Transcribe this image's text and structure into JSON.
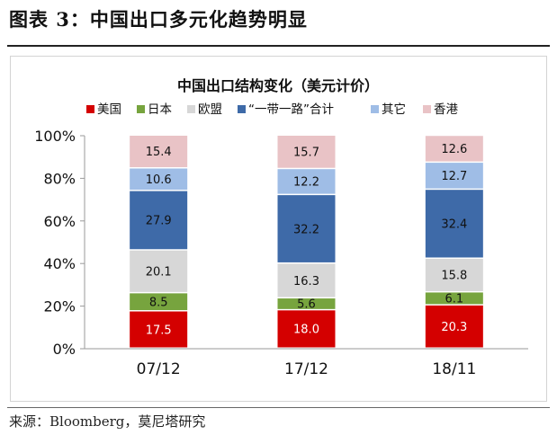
{
  "figure": {
    "title": "图表 3：中国出口多元化趋势明显",
    "source": "来源：Bloomberg，莫尼塔研究"
  },
  "chart_data": {
    "type": "bar",
    "stacked": true,
    "title": "中国出口结构变化（美元计价）",
    "xlabel": "",
    "ylabel": "",
    "ylim": [
      0,
      100
    ],
    "y_ticks": [
      "0%",
      "20%",
      "40%",
      "60%",
      "80%",
      "100%"
    ],
    "y_tick_values": [
      0,
      20,
      40,
      60,
      80,
      100
    ],
    "grid": false,
    "legend_position": "top",
    "categories": [
      "07/12",
      "17/12",
      "18/11"
    ],
    "series": [
      {
        "name": "美国",
        "color": "#d40000",
        "label_color": "#ffffff",
        "values": [
          17.5,
          18.0,
          20.3
        ],
        "labels": [
          "17.5",
          "18.0",
          "20.3"
        ]
      },
      {
        "name": "日本",
        "color": "#77a43e",
        "label_color": "#111111",
        "values": [
          8.5,
          5.6,
          6.1
        ],
        "labels": [
          "8.5",
          "5.6",
          "6.1"
        ]
      },
      {
        "name": "欧盟",
        "color": "#d7d7d7",
        "label_color": "#111111",
        "values": [
          20.1,
          16.3,
          15.8
        ],
        "labels": [
          "20.1",
          "16.3",
          "15.8"
        ]
      },
      {
        "name": "“一带一路”合计",
        "color": "#3e6aa8",
        "label_color": "#111111",
        "values": [
          27.9,
          32.2,
          32.4
        ],
        "labels": [
          "27.9",
          "32.2",
          "32.4"
        ]
      },
      {
        "name": "其它",
        "color": "#9fbde6",
        "label_color": "#111111",
        "values": [
          10.6,
          12.2,
          12.7
        ],
        "labels": [
          "10.6",
          "12.2",
          "12.7"
        ]
      },
      {
        "name": "香港",
        "color": "#e9c3c6",
        "label_color": "#111111",
        "values": [
          15.4,
          15.7,
          12.6
        ],
        "labels": [
          "15.4",
          "15.7",
          "12.6"
        ]
      }
    ]
  }
}
